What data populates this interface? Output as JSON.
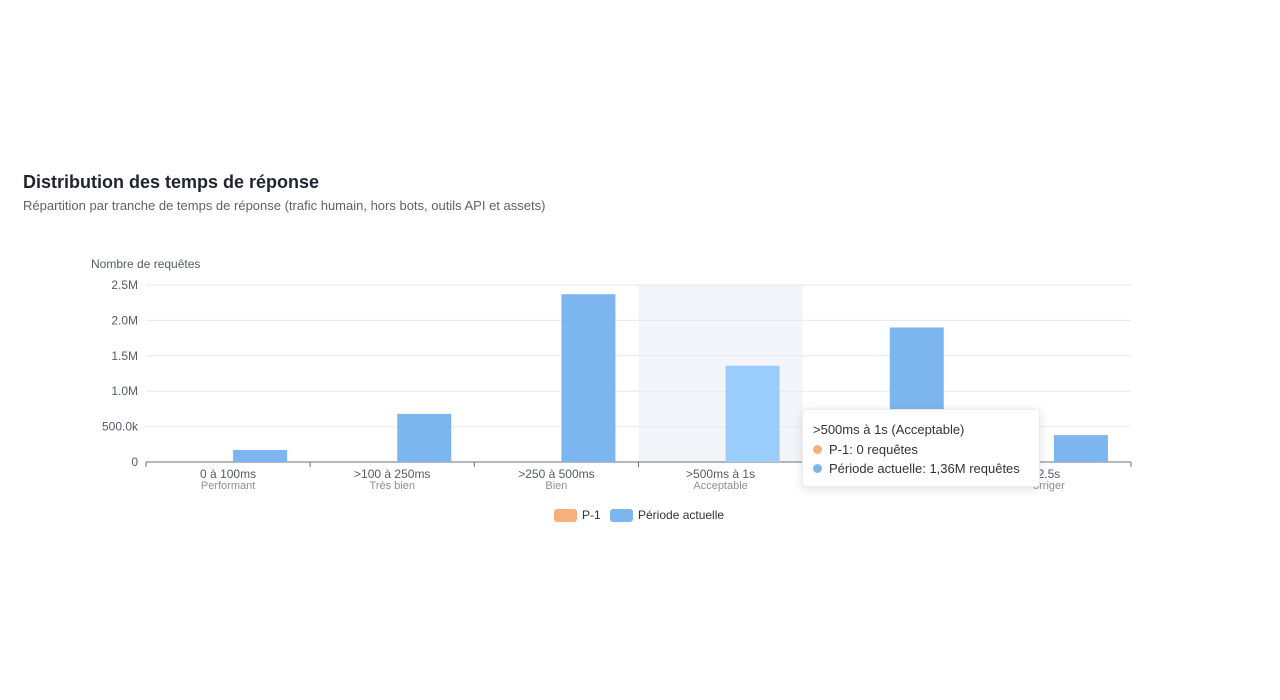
{
  "header": {
    "title": "Distribution des temps de réponse",
    "subtitle": "Répartition par tranche de temps de réponse (trafic humain, hors bots, outils API et assets)"
  },
  "chart_data": {
    "type": "bar",
    "ylabel": "Nombre de requêtes",
    "ylim": [
      0,
      2500000
    ],
    "yticks": [
      0,
      500000,
      1000000,
      1500000,
      2000000,
      2500000
    ],
    "ytick_labels": [
      "0",
      "500.0k",
      "1.0M",
      "1.5M",
      "2.0M",
      "2.5M"
    ],
    "categories": [
      [
        "0 à 100ms",
        "Performant"
      ],
      [
        ">100 à 250ms",
        "Très bien"
      ],
      [
        ">250 à 500ms",
        "Bien"
      ],
      [
        ">500ms à 1s",
        "Acceptable"
      ],
      [
        "",
        ""
      ],
      [
        "2.5s",
        "orriger"
      ]
    ],
    "series": [
      {
        "name": "P-1",
        "color": "#f5b07c",
        "values": [
          0,
          0,
          0,
          0,
          0,
          0
        ]
      },
      {
        "name": "Période actuelle",
        "color": "#7db6ee",
        "values": [
          170000,
          680000,
          2370000,
          1360000,
          1900000,
          380000
        ]
      }
    ],
    "highlight_index": 3,
    "highlight_color": "#9acdfb",
    "grid": true,
    "legend": "bottom-center"
  },
  "tooltip": {
    "title": ">500ms à 1s (Acceptable)",
    "rows": [
      {
        "text": "P-1: 0 requêtes",
        "color": "#f5b07c"
      },
      {
        "text": "Période actuelle: 1,36M requêtes",
        "color": "#7db6ee"
      }
    ]
  }
}
